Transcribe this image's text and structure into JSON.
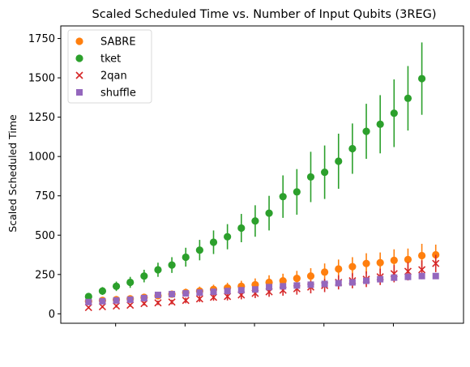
{
  "chart_data": {
    "type": "scatter",
    "title": "Scaled Scheduled Time vs. Number of Input Qubits (3REG)",
    "xlabel": "",
    "ylabel": "Scaled Scheduled Time",
    "ylim": [
      -60,
      1830
    ],
    "yticks": [
      0,
      250,
      500,
      750,
      1000,
      1250,
      1500,
      1750
    ],
    "x_tick_labels_visible": false,
    "legend_position": "top-left",
    "grid": false,
    "x": [
      4,
      6,
      8,
      10,
      12,
      14,
      16,
      18,
      20,
      22,
      24,
      26,
      28,
      30,
      32,
      34,
      36,
      38,
      40,
      42,
      44,
      46,
      48,
      50,
      52,
      54
    ],
    "series": [
      {
        "name": "SABRE",
        "color": "#ff7f0e",
        "marker": "circle",
        "values": [
          80,
          85,
          90,
          95,
          105,
          115,
          125,
          135,
          145,
          155,
          165,
          175,
          185,
          200,
          210,
          225,
          240,
          265,
          285,
          300,
          320,
          325,
          340,
          345,
          370,
          375
        ],
        "errors": [
          15,
          15,
          15,
          18,
          18,
          20,
          22,
          25,
          28,
          30,
          32,
          35,
          40,
          45,
          45,
          48,
          50,
          55,
          60,
          60,
          65,
          65,
          70,
          70,
          75,
          65
        ]
      },
      {
        "name": "tket",
        "color": "#2ca02c",
        "marker": "circle",
        "values": [
          110,
          145,
          175,
          200,
          240,
          280,
          310,
          360,
          405,
          455,
          490,
          545,
          590,
          640,
          745,
          775,
          870,
          900,
          970,
          1050,
          1160,
          1205,
          1275,
          1370,
          1495
        ],
        "errors": [
          20,
          25,
          30,
          35,
          40,
          45,
          50,
          60,
          65,
          75,
          80,
          90,
          100,
          110,
          135,
          145,
          160,
          170,
          175,
          160,
          175,
          185,
          215,
          205,
          230
        ],
        "x": [
          4,
          6,
          8,
          10,
          12,
          14,
          16,
          18,
          20,
          22,
          24,
          26,
          28,
          30,
          32,
          34,
          36,
          38,
          40,
          42,
          44,
          46,
          48,
          50,
          52
        ]
      },
      {
        "name": "2qan",
        "color": "#d62728",
        "marker": "x",
        "values": [
          40,
          45,
          50,
          55,
          65,
          70,
          75,
          85,
          95,
          105,
          110,
          120,
          130,
          140,
          150,
          160,
          170,
          180,
          200,
          210,
          220,
          235,
          255,
          270,
          280,
          320
        ],
        "errors": [
          8,
          8,
          10,
          10,
          12,
          14,
          15,
          18,
          20,
          22,
          25,
          28,
          30,
          32,
          35,
          38,
          40,
          42,
          45,
          48,
          50,
          52,
          55,
          58,
          60,
          55
        ]
      },
      {
        "name": "shuffle",
        "color": "#9467bd",
        "marker": "square",
        "values": [
          75,
          80,
          85,
          90,
          100,
          120,
          125,
          130,
          135,
          140,
          145,
          150,
          155,
          170,
          175,
          180,
          185,
          190,
          195,
          200,
          210,
          220,
          230,
          235,
          240,
          240
        ],
        "errors": [
          5,
          5,
          5,
          6,
          6,
          6,
          7,
          7,
          8,
          8,
          8,
          9,
          9,
          10,
          10,
          10,
          10,
          10,
          10,
          10,
          10,
          10,
          10,
          10,
          10,
          10
        ]
      }
    ]
  }
}
